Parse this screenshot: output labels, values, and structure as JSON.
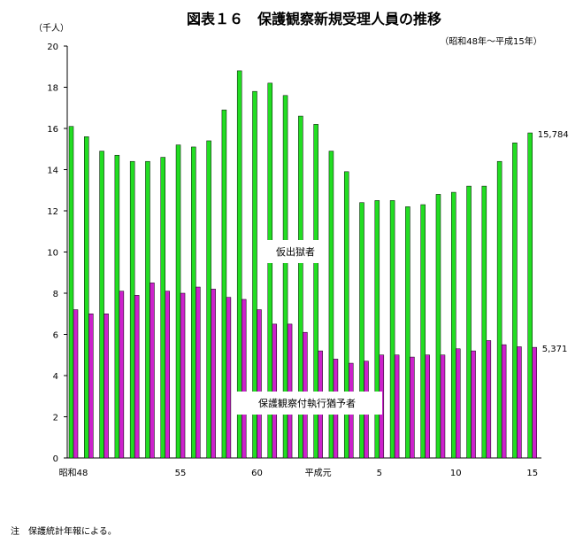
{
  "chart_data": {
    "type": "bar",
    "title": "図表１６　保護観察新規受理人員の推移",
    "subtitle": "（昭和48年～平成15年）",
    "ylabel": "（千人）",
    "note": "注　保護統計年報による。",
    "ylim": [
      0,
      20
    ],
    "yticks": [
      "0",
      "2",
      "4",
      "6",
      "8",
      "10",
      "12",
      "14",
      "16",
      "18",
      "20"
    ],
    "categories": [
      "S48",
      "S49",
      "S50",
      "S51",
      "S52",
      "S53",
      "S54",
      "S55",
      "S56",
      "S57",
      "S58",
      "S59",
      "S60",
      "S61",
      "S62",
      "S63",
      "H1",
      "H2",
      "H3",
      "H4",
      "H5",
      "H6",
      "H7",
      "H8",
      "H9",
      "H10",
      "H11",
      "H12",
      "H13",
      "H14",
      "H15"
    ],
    "xtick_labels": [
      {
        "index": 0,
        "label": "昭和48"
      },
      {
        "index": 7,
        "label": "55"
      },
      {
        "index": 12,
        "label": "60"
      },
      {
        "index": 16,
        "label": "平成元"
      },
      {
        "index": 20,
        "label": "5"
      },
      {
        "index": 25,
        "label": "10"
      },
      {
        "index": 30,
        "label": "15"
      }
    ],
    "series": [
      {
        "name": "仮出獄者",
        "color": "#22dd22",
        "values": [
          16.1,
          15.6,
          14.9,
          14.7,
          14.4,
          14.4,
          14.6,
          15.2,
          15.1,
          15.4,
          16.9,
          18.8,
          17.8,
          18.2,
          17.6,
          16.6,
          16.2,
          14.9,
          13.9,
          12.4,
          12.5,
          12.5,
          12.2,
          12.3,
          12.8,
          12.9,
          13.2,
          13.2,
          14.4,
          15.3,
          15.784
        ],
        "end_label": "15,784"
      },
      {
        "name": "保護観察付執行猶予者",
        "color": "#cc22cc",
        "values": [
          7.2,
          7.0,
          7.0,
          8.1,
          7.9,
          8.5,
          8.1,
          8.0,
          8.3,
          8.2,
          7.8,
          7.7,
          7.2,
          6.5,
          6.5,
          6.1,
          5.2,
          4.8,
          4.6,
          4.7,
          5.0,
          5.0,
          4.9,
          5.0,
          5.0,
          5.3,
          5.2,
          5.7,
          5.5,
          5.4,
          5.371
        ],
        "end_label": "5,371"
      }
    ]
  }
}
